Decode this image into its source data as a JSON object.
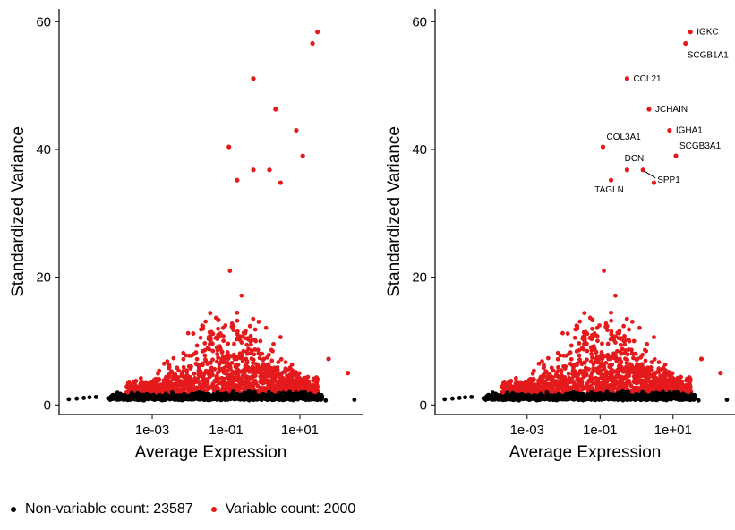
{
  "chart_data": [
    {
      "type": "scatter",
      "xlabel": "Average Expression",
      "ylabel": "Standardized Variance",
      "x_scale": "log10",
      "x_ticks": [
        0.001,
        0.1,
        10
      ],
      "x_tick_labels": [
        "1e-03",
        "1e-01",
        "1e+01"
      ],
      "xlim": [
        3e-06,
        500
      ],
      "y_ticks": [
        0,
        20,
        40,
        60
      ],
      "y_tick_labels": [
        "0",
        "20",
        "40",
        "60"
      ],
      "ylim": [
        -1.5,
        62
      ],
      "grid": false,
      "series": [
        {
          "name": "Non-variable",
          "color": "#000000",
          "point_count": 23587
        },
        {
          "name": "Variable",
          "color": "#e41a1c",
          "point_count": 2000
        }
      ],
      "highlight_points": [
        {
          "x": 30,
          "y": 58.4
        },
        {
          "x": 22,
          "y": 56.6
        },
        {
          "x": 0.55,
          "y": 51.1
        },
        {
          "x": 2.2,
          "y": 46.3
        },
        {
          "x": 8,
          "y": 43
        },
        {
          "x": 0.12,
          "y": 40.4
        },
        {
          "x": 12,
          "y": 39
        },
        {
          "x": 0.55,
          "y": 36.8
        },
        {
          "x": 1.5,
          "y": 36.8
        },
        {
          "x": 3,
          "y": 34.8
        },
        {
          "x": 0.2,
          "y": 35.2
        },
        {
          "x": 2,
          "y": 5.5
        },
        {
          "x": 60,
          "y": 7.2
        },
        {
          "x": 200,
          "y": 5
        }
      ],
      "annotations": []
    },
    {
      "type": "scatter",
      "xlabel": "Average Expression",
      "ylabel": "Standardized Variance",
      "x_scale": "log10",
      "x_ticks": [
        0.001,
        0.1,
        10
      ],
      "x_tick_labels": [
        "1e-03",
        "1e-01",
        "1e+01"
      ],
      "xlim": [
        3e-06,
        500
      ],
      "y_ticks": [
        0,
        20,
        40,
        60
      ],
      "y_tick_labels": [
        "0",
        "20",
        "40",
        "60"
      ],
      "ylim": [
        -1.5,
        62
      ],
      "grid": false,
      "series": [
        {
          "name": "Non-variable",
          "color": "#000000",
          "point_count": 23587
        },
        {
          "name": "Variable",
          "color": "#e41a1c",
          "point_count": 2000
        }
      ],
      "highlight_points": [
        {
          "x": 30,
          "y": 58.4
        },
        {
          "x": 22,
          "y": 56.6
        },
        {
          "x": 0.55,
          "y": 51.1
        },
        {
          "x": 2.2,
          "y": 46.3
        },
        {
          "x": 8,
          "y": 43
        },
        {
          "x": 0.12,
          "y": 40.4
        },
        {
          "x": 12,
          "y": 39
        },
        {
          "x": 0.55,
          "y": 36.8
        },
        {
          "x": 1.5,
          "y": 36.8
        },
        {
          "x": 3,
          "y": 34.8
        },
        {
          "x": 0.2,
          "y": 35.2
        },
        {
          "x": 2,
          "y": 5.5
        },
        {
          "x": 60,
          "y": 7.2
        },
        {
          "x": 200,
          "y": 5
        }
      ],
      "annotations": [
        {
          "text": "IGKC",
          "x": 30,
          "y": 58.4,
          "anchor": "right",
          "leader": false
        },
        {
          "text": "SCGB1A1",
          "x": 22,
          "y": 56.6,
          "anchor": "below-right",
          "leader": false
        },
        {
          "text": "CCL21",
          "x": 0.55,
          "y": 51.1,
          "anchor": "right",
          "leader": false
        },
        {
          "text": "JCHAIN",
          "x": 2.2,
          "y": 46.3,
          "anchor": "right",
          "leader": false
        },
        {
          "text": "IGHA1",
          "x": 8,
          "y": 43,
          "anchor": "right",
          "leader": false
        },
        {
          "text": "COL3A1",
          "x": 0.12,
          "y": 40.4,
          "anchor": "above-right",
          "leader": false
        },
        {
          "text": "SCGB3A1",
          "x": 12,
          "y": 39,
          "anchor": "above-right",
          "leader": false
        },
        {
          "text": "DCN",
          "x": 0.55,
          "y": 36.8,
          "anchor": "above",
          "leader": false
        },
        {
          "text": "SPP1",
          "x": 1.5,
          "y": 36.8,
          "anchor": "below-right",
          "leader": true
        },
        {
          "text": "TAGLN",
          "x": 0.2,
          "y": 35.2,
          "anchor": "below",
          "leader": false
        }
      ]
    }
  ],
  "legend": {
    "position": "bottom-left",
    "items": [
      {
        "label": "Non-variable count: 23587",
        "color": "#000000"
      },
      {
        "label": "Variable count: 2000",
        "color": "#e41a1c"
      }
    ]
  }
}
